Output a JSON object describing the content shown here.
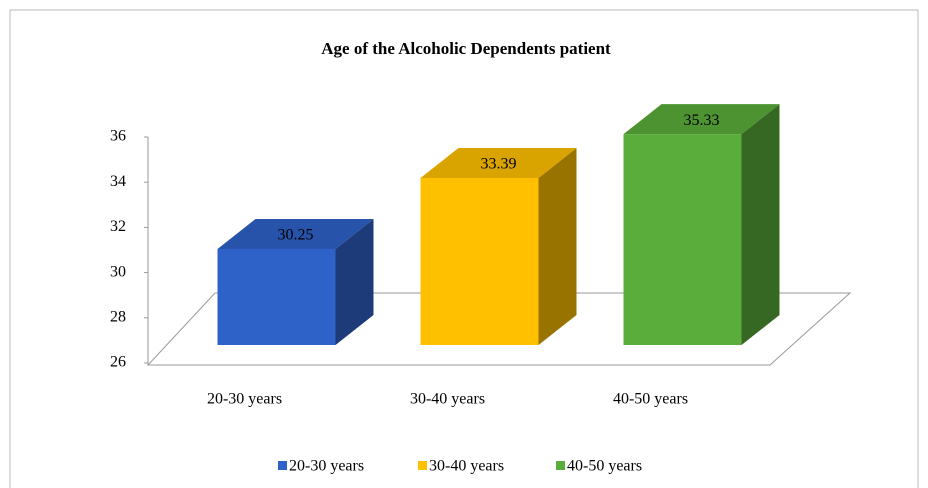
{
  "chart_data": {
    "type": "bar3d",
    "title": "Age of the  Alcoholic Dependents  patient",
    "categories": [
      "20-30 years",
      "30-40 years",
      "40-50 years"
    ],
    "values": [
      30.25,
      33.39,
      35.33
    ],
    "colors": [
      "#2f62c8",
      "#ffc000",
      "#5aad3a"
    ],
    "ylim": [
      26,
      36
    ],
    "yticks": [
      26,
      28,
      30,
      32,
      34,
      36
    ],
    "legend": "bottom"
  }
}
